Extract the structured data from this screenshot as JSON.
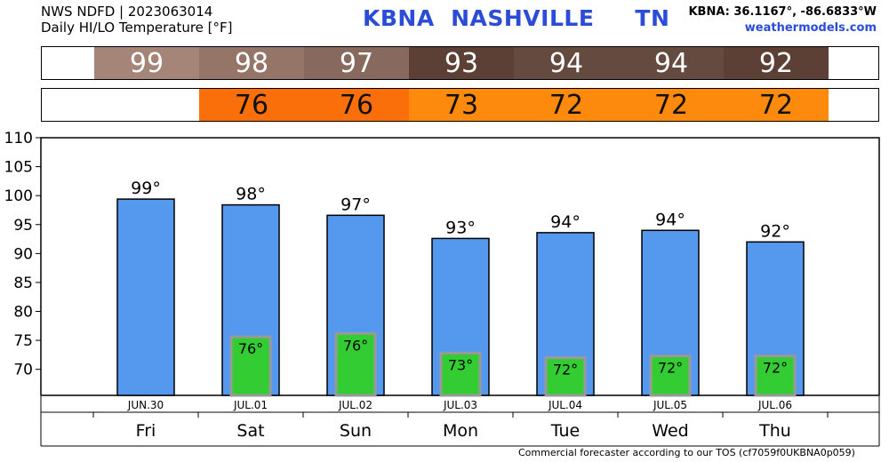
{
  "header": {
    "line1": "NWS NDFD | 2023063014",
    "line2": "Daily HI/LO Temperature [°F]",
    "station": "KBNA  NASHVILLE     TN",
    "coords": "KBNA: 36.1167°, -86.6833°W",
    "site": "weathermodels.com"
  },
  "hi_strip": [
    {
      "value": "99",
      "color": "#a48578"
    },
    {
      "value": "98",
      "color": "#957568"
    },
    {
      "value": "97",
      "color": "#87695e"
    },
    {
      "value": "93",
      "color": "#5c3f35"
    },
    {
      "value": "94",
      "color": "#654a3f"
    },
    {
      "value": "94",
      "color": "#654a3f"
    },
    {
      "value": "92",
      "color": "#5c3f35"
    }
  ],
  "lo_strip": [
    {
      "value": "",
      "color": "#ffffff"
    },
    {
      "value": "76",
      "color": "#fa6f0a"
    },
    {
      "value": "76",
      "color": "#fa6f0a"
    },
    {
      "value": "73",
      "color": "#fd8a0c"
    },
    {
      "value": "72",
      "color": "#fd8a0c"
    },
    {
      "value": "72",
      "color": "#fd8a0c"
    },
    {
      "value": "72",
      "color": "#fd8a0c"
    }
  ],
  "chart_data": {
    "type": "bar",
    "categories": [
      "JUN.30",
      "JUL.01",
      "JUL.02",
      "JUL.03",
      "JUL.04",
      "JUL.05",
      "JUL.06"
    ],
    "days": [
      "Fri",
      "Sat",
      "Sun",
      "Mon",
      "Tue",
      "Wed",
      "Thu"
    ],
    "series": [
      {
        "name": "HI",
        "values": [
          99.4,
          98.4,
          96.6,
          92.6,
          93.6,
          94.0,
          92.0
        ],
        "labels": [
          "99°",
          "98°",
          "97°",
          "93°",
          "94°",
          "94°",
          "92°"
        ],
        "color": "#5599ee"
      },
      {
        "name": "LO",
        "values": [
          null,
          75.6,
          76.2,
          72.8,
          72.0,
          72.3,
          72.3
        ],
        "labels": [
          "",
          "76°",
          "76°",
          "73°",
          "72°",
          "72°",
          "72°"
        ],
        "color": "#33cc33"
      }
    ],
    "ylim": [
      65.5,
      110
    ],
    "yticks": [
      70,
      75,
      80,
      85,
      90,
      95,
      100,
      105,
      110
    ],
    "grid": false,
    "colors": {
      "hi_bar": "#5599ee",
      "lo_bar": "#33cc33",
      "lo_border": "#999999"
    }
  },
  "footer": "Commercial forecaster according to our TOS (cf7059f0UKBNA0p059)"
}
